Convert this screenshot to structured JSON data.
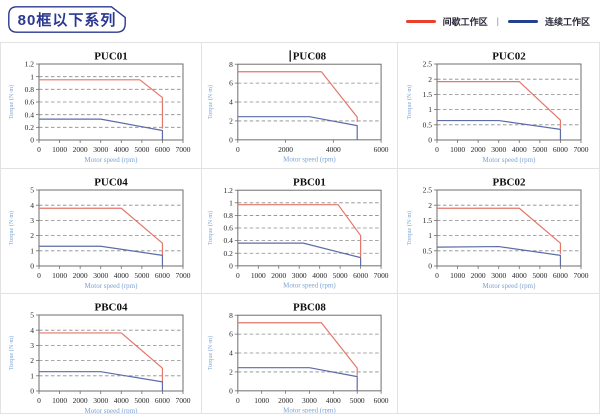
{
  "page": {
    "title": "80框以下系列",
    "legend": [
      {
        "label": "间歇工作区",
        "color": "#e8432a"
      },
      {
        "label": "连续工作区",
        "color": "#24418e"
      }
    ],
    "legend_separator": "|"
  },
  "chart_defaults": {
    "colors": {
      "intermittent": "#e4766a",
      "continuous": "#5b6ca8",
      "grid": "#8a8a8a",
      "axis": "#6e6e6e",
      "tick_text": "#262626",
      "axis_label": "#7ba3d4",
      "title_text": "#111111"
    }
  },
  "chart_data": [
    {
      "type": "line",
      "title": "PUC01",
      "xlabel": "Motor speed (rpm)",
      "ylabel": "Torque (N·m)",
      "xlim": [
        0,
        7000
      ],
      "xticks": [
        0,
        1000,
        2000,
        3000,
        4000,
        5000,
        6000,
        7000
      ],
      "ylim": [
        0,
        1.2
      ],
      "yticks": [
        0,
        0.2,
        0.4,
        0.6,
        0.8,
        1,
        1.2
      ],
      "grid": "horizontal-dashed",
      "legend_position": "none",
      "series": [
        {
          "name": "间歇工作区",
          "color_key": "intermittent",
          "points": [
            [
              0,
              0.95
            ],
            [
              4900,
              0.95
            ],
            [
              6000,
              0.67
            ],
            [
              6000,
              0.18
            ]
          ]
        },
        {
          "name": "连续工作区",
          "color_key": "continuous",
          "points": [
            [
              0,
              0.33
            ],
            [
              3000,
              0.33
            ],
            [
              6000,
              0.15
            ],
            [
              6000,
              0
            ]
          ]
        }
      ]
    },
    {
      "type": "line",
      "title": "PUC08",
      "text_cursor": true,
      "xlabel": "Motor speed (rpm)",
      "ylabel": "Torque (N·m)",
      "xlim": [
        0,
        6000
      ],
      "xticks": [
        0,
        2000,
        4000,
        6000
      ],
      "ylim": [
        0,
        8
      ],
      "yticks": [
        0,
        2,
        4,
        6,
        8
      ],
      "grid": "horizontal-dashed",
      "legend_position": "none",
      "series": [
        {
          "name": "间歇工作区",
          "color_key": "intermittent",
          "points": [
            [
              0,
              7.2
            ],
            [
              3500,
              7.2
            ],
            [
              5000,
              2.4
            ],
            [
              5000,
              1.9
            ]
          ]
        },
        {
          "name": "连续工作区",
          "color_key": "continuous",
          "points": [
            [
              0,
              2.45
            ],
            [
              3000,
              2.45
            ],
            [
              5000,
              1.5
            ],
            [
              5000,
              0
            ]
          ]
        }
      ]
    },
    {
      "type": "line",
      "title": "PUC02",
      "xlabel": "Motor speed (rpm)",
      "ylabel": "Torque (N·m)",
      "xlim": [
        0,
        7000
      ],
      "xticks": [
        0,
        1000,
        2000,
        3000,
        4000,
        5000,
        6000,
        7000
      ],
      "ylim": [
        0,
        2.5
      ],
      "yticks": [
        0,
        0.5,
        1,
        1.5,
        2,
        2.5
      ],
      "grid": "horizontal-dashed",
      "legend_position": "none",
      "series": [
        {
          "name": "间歇工作区",
          "color_key": "intermittent",
          "points": [
            [
              0,
              1.92
            ],
            [
              4000,
              1.92
            ],
            [
              6000,
              0.65
            ],
            [
              6000,
              0.38
            ]
          ]
        },
        {
          "name": "连续工作区",
          "color_key": "continuous",
          "points": [
            [
              0,
              0.64
            ],
            [
              3000,
              0.64
            ],
            [
              6000,
              0.35
            ],
            [
              6000,
              0
            ]
          ]
        }
      ]
    },
    {
      "type": "line",
      "title": "PUC04",
      "xlabel": "Motor speed (rpm)",
      "ylabel": "Torque (N·m)",
      "xlim": [
        0,
        7000
      ],
      "xticks": [
        0,
        1000,
        2000,
        3000,
        4000,
        5000,
        6000,
        7000
      ],
      "ylim": [
        0,
        5
      ],
      "yticks": [
        0,
        1,
        2,
        3,
        4,
        5
      ],
      "grid": "horizontal-dashed",
      "legend_position": "none",
      "series": [
        {
          "name": "间歇工作区",
          "color_key": "intermittent",
          "points": [
            [
              0,
              3.8
            ],
            [
              4000,
              3.8
            ],
            [
              6000,
              1.5
            ],
            [
              6000,
              0.72
            ]
          ]
        },
        {
          "name": "连续工作区",
          "color_key": "continuous",
          "points": [
            [
              0,
              1.3
            ],
            [
              3000,
              1.3
            ],
            [
              6000,
              0.7
            ],
            [
              6000,
              0
            ]
          ]
        }
      ]
    },
    {
      "type": "line",
      "title": "PBC01",
      "xlabel": "Motor speed (rpm)",
      "ylabel": "Torque (N·m)",
      "xlim": [
        0,
        7000
      ],
      "xticks": [
        0,
        1000,
        2000,
        3000,
        4000,
        5000,
        6000,
        7000
      ],
      "ylim": [
        0,
        1.2
      ],
      "yticks": [
        0,
        0.2,
        0.4,
        0.6,
        0.8,
        1,
        1.2
      ],
      "grid": "horizontal-dashed",
      "legend_position": "none",
      "series": [
        {
          "name": "间歇工作区",
          "color_key": "intermittent",
          "points": [
            [
              0,
              0.97
            ],
            [
              4900,
              0.97
            ],
            [
              6000,
              0.48
            ],
            [
              6000,
              0.14
            ]
          ]
        },
        {
          "name": "连续工作区",
          "color_key": "continuous",
          "points": [
            [
              0,
              0.36
            ],
            [
              3200,
              0.36
            ],
            [
              6000,
              0.13
            ],
            [
              6000,
              0
            ]
          ]
        }
      ]
    },
    {
      "type": "line",
      "title": "PBC02",
      "xlabel": "Motor speed (rpm)",
      "ylabel": "Torque (N·m)",
      "xlim": [
        0,
        7000
      ],
      "xticks": [
        0,
        1000,
        2000,
        3000,
        4000,
        5000,
        6000,
        7000
      ],
      "ylim": [
        0,
        2.5
      ],
      "yticks": [
        0,
        0.5,
        1,
        1.5,
        2,
        2.5
      ],
      "grid": "horizontal-dashed",
      "legend_position": "none",
      "series": [
        {
          "name": "间歇工作区",
          "color_key": "intermittent",
          "points": [
            [
              0,
              1.9
            ],
            [
              4000,
              1.9
            ],
            [
              6000,
              0.75
            ],
            [
              6000,
              0.4
            ]
          ]
        },
        {
          "name": "连续工作区",
          "color_key": "continuous",
          "points": [
            [
              0,
              0.62
            ],
            [
              3000,
              0.64
            ],
            [
              6000,
              0.35
            ],
            [
              6000,
              0
            ]
          ]
        }
      ]
    },
    {
      "type": "line",
      "title": "PBC04",
      "xlabel": "Motor speed (rpm)",
      "ylabel": "Torque (N·m)",
      "xlim": [
        0,
        7000
      ],
      "xticks": [
        0,
        1000,
        2000,
        3000,
        4000,
        5000,
        6000,
        7000
      ],
      "ylim": [
        0,
        5
      ],
      "yticks": [
        0,
        1,
        2,
        3,
        4,
        5
      ],
      "grid": "horizontal-dashed",
      "legend_position": "none",
      "series": [
        {
          "name": "间歇工作区",
          "color_key": "intermittent",
          "points": [
            [
              0,
              3.82
            ],
            [
              4000,
              3.82
            ],
            [
              6000,
              1.5
            ],
            [
              6000,
              0.62
            ]
          ]
        },
        {
          "name": "连续工作区",
          "color_key": "continuous",
          "points": [
            [
              0,
              1.27
            ],
            [
              3000,
              1.27
            ],
            [
              6000,
              0.6
            ],
            [
              6000,
              0
            ]
          ]
        }
      ]
    },
    {
      "type": "line",
      "title": "PBC08",
      "xlabel": "Motor speed (rpm)",
      "ylabel": "Torque (N·m)",
      "xlim": [
        0,
        6000
      ],
      "xticks": [
        0,
        1000,
        2000,
        3000,
        4000,
        5000,
        6000
      ],
      "ylim": [
        0,
        8
      ],
      "yticks": [
        0,
        2,
        4,
        6,
        8
      ],
      "grid": "horizontal-dashed",
      "legend_position": "none",
      "series": [
        {
          "name": "间歇工作区",
          "color_key": "intermittent",
          "points": [
            [
              0,
              7.2
            ],
            [
              3500,
              7.2
            ],
            [
              5000,
              2.4
            ],
            [
              5000,
              1.6
            ]
          ]
        },
        {
          "name": "连续工作区",
          "color_key": "continuous",
          "points": [
            [
              0,
              2.45
            ],
            [
              3000,
              2.45
            ],
            [
              5000,
              1.5
            ],
            [
              5000,
              0
            ]
          ]
        }
      ]
    }
  ]
}
